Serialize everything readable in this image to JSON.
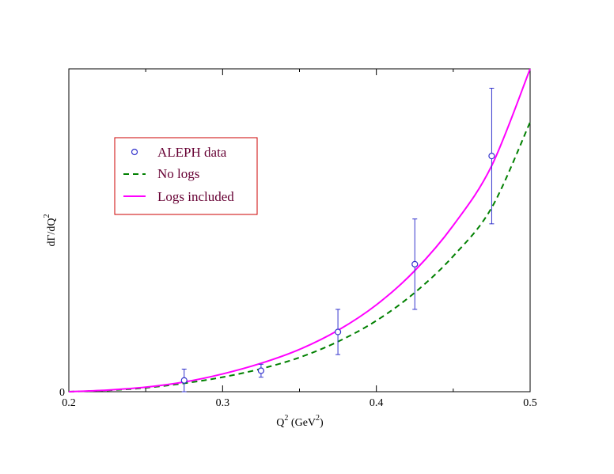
{
  "chart_data": {
    "type": "line",
    "title": "",
    "xlabel": {
      "main": "Q",
      "sup": "2",
      "unit_open": " (GeV",
      "unit_sup": "2",
      "unit_close": ")"
    },
    "ylabel": {
      "main": "dΓ/dQ",
      "sup": "2"
    },
    "xlim": [
      0.2,
      0.5
    ],
    "ylim": [
      0,
      1.0
    ],
    "x_major_ticks": [
      0.2,
      0.3,
      0.4,
      0.5
    ],
    "x_tick_labels": [
      "0.2",
      "0.3",
      "0.4",
      "0.5"
    ],
    "x_minor_ticks": [
      0.25,
      0.35,
      0.45
    ],
    "y_tick_labels": [
      "0"
    ],
    "y_tick_values": [
      0
    ],
    "grid": false,
    "legend_position": "upper-left",
    "series": [
      {
        "name": "ALEPH data",
        "kind": "scatter-errorbar",
        "color": "#3333cc",
        "points": [
          {
            "x": 0.275,
            "y": 0.035,
            "err": 0.035
          },
          {
            "x": 0.325,
            "y": 0.065,
            "err": 0.02
          },
          {
            "x": 0.375,
            "y": 0.185,
            "err": 0.07
          },
          {
            "x": 0.425,
            "y": 0.395,
            "err": 0.14
          },
          {
            "x": 0.475,
            "y": 0.73,
            "err": 0.21
          }
        ]
      },
      {
        "name": "No logs",
        "kind": "line",
        "style": "dashed",
        "color": "#008000",
        "x": [
          0.2,
          0.225,
          0.25,
          0.275,
          0.3,
          0.325,
          0.35,
          0.375,
          0.4,
          0.425,
          0.45,
          0.475,
          0.5
        ],
        "y": [
          0,
          0.004,
          0.012,
          0.026,
          0.045,
          0.071,
          0.106,
          0.155,
          0.22,
          0.307,
          0.42,
          0.57,
          0.835
        ]
      },
      {
        "name": "Logs included",
        "kind": "line",
        "style": "solid",
        "color": "#ff00ff",
        "x": [
          0.2,
          0.225,
          0.25,
          0.275,
          0.3,
          0.325,
          0.35,
          0.375,
          0.4,
          0.425,
          0.45,
          0.475,
          0.5
        ],
        "y": [
          0,
          0.005,
          0.014,
          0.03,
          0.055,
          0.088,
          0.131,
          0.19,
          0.269,
          0.375,
          0.515,
          0.7,
          1.0
        ]
      }
    ]
  }
}
